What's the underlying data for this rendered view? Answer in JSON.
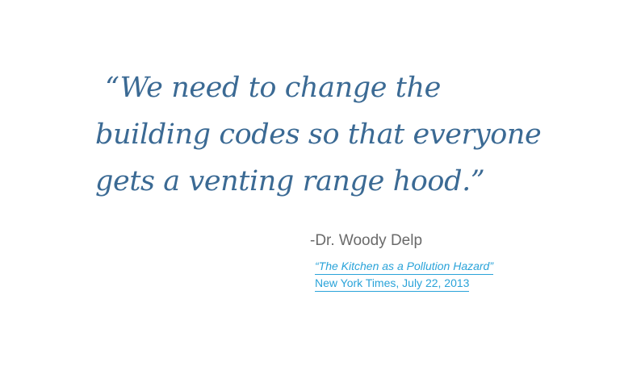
{
  "quote": {
    "lines": [
      "“We need to change the",
      "building codes so that everyone",
      "gets a venting range hood.”"
    ]
  },
  "attribution": {
    "author": "-Dr. Woody Delp"
  },
  "source": {
    "article_title": "“The Kitchen as a Pollution Hazard”",
    "publication": "New York Times, July 22, 2013"
  },
  "colors": {
    "quote": "#3b6a94",
    "author": "#6a6a6a",
    "link": "#2aa3d9"
  }
}
